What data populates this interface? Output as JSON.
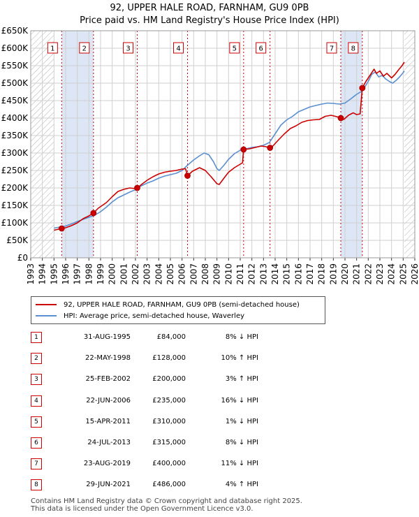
{
  "title": "92, UPPER HALE ROAD, FARNHAM, GU9 0PB",
  "subtitle": "Price paid vs. HM Land Registry's House Price Index (HPI)",
  "colors": {
    "property": "#cc0000",
    "hpi": "#5b8fd0",
    "shade": "#dde6f4",
    "grid": "#cfcfcf",
    "hatch": "#aaaaaa"
  },
  "legend": {
    "property_label": "92, UPPER HALE ROAD, FARNHAM, GU9 0PB (semi-detached house)",
    "hpi_label": "HPI: Average price, semi-detached house, Waverley"
  },
  "transactions": [
    {
      "num": "1",
      "date": "31-AUG-1995",
      "price": "£84,000",
      "hpi": "8% ↓ HPI"
    },
    {
      "num": "2",
      "date": "22-MAY-1998",
      "price": "£128,000",
      "hpi": "10% ↑ HPI"
    },
    {
      "num": "3",
      "date": "25-FEB-2002",
      "price": "£200,000",
      "hpi": "3% ↑ HPI"
    },
    {
      "num": "4",
      "date": "22-JUN-2006",
      "price": "£235,000",
      "hpi": "16% ↓ HPI"
    },
    {
      "num": "5",
      "date": "15-APR-2011",
      "price": "£310,000",
      "hpi": "1% ↓ HPI"
    },
    {
      "num": "6",
      "date": "24-JUL-2013",
      "price": "£315,000",
      "hpi": "8% ↓ HPI"
    },
    {
      "num": "7",
      "date": "23-AUG-2019",
      "price": "£400,000",
      "hpi": "11% ↓ HPI"
    },
    {
      "num": "8",
      "date": "29-JUN-2021",
      "price": "£486,000",
      "hpi": "4% ↑ HPI"
    }
  ],
  "footer": {
    "line1": "Contains HM Land Registry data © Crown copyright and database right 2025.",
    "line2": "This data is licensed under the Open Government Licence v3.0."
  },
  "chart_data": {
    "type": "line",
    "xlim": [
      1993,
      2026
    ],
    "ylim": [
      0,
      650000
    ],
    "grid": true,
    "legend_position": "below",
    "x_ticks": [
      "1993",
      "1994",
      "1995",
      "1996",
      "1997",
      "1998",
      "1999",
      "2000",
      "2001",
      "2002",
      "2003",
      "2004",
      "2005",
      "2006",
      "2007",
      "2008",
      "2009",
      "2010",
      "2011",
      "2012",
      "2013",
      "2014",
      "2015",
      "2016",
      "2017",
      "2018",
      "2019",
      "2020",
      "2021",
      "2022",
      "2023",
      "2024",
      "2025",
      "2026"
    ],
    "y_ticks": [
      {
        "value": 0,
        "label": "£0"
      },
      {
        "value": 50000,
        "label": "£50K"
      },
      {
        "value": 100000,
        "label": "£100K"
      },
      {
        "value": 150000,
        "label": "£150K"
      },
      {
        "value": 200000,
        "label": "£200K"
      },
      {
        "value": 250000,
        "label": "£250K"
      },
      {
        "value": 300000,
        "label": "£300K"
      },
      {
        "value": 350000,
        "label": "£350K"
      },
      {
        "value": 400000,
        "label": "£400K"
      },
      {
        "value": 450000,
        "label": "£450K"
      },
      {
        "value": 500000,
        "label": "£500K"
      },
      {
        "value": 550000,
        "label": "£550K"
      },
      {
        "value": 600000,
        "label": "£600K"
      },
      {
        "value": 650000,
        "label": "£650K"
      }
    ],
    "hatch_ranges": [
      [
        1993,
        1995.0
      ],
      [
        2025.1,
        2026
      ]
    ],
    "shaded_ranges": [
      [
        1995.66,
        1998.39
      ],
      [
        2019.64,
        2021.49
      ]
    ],
    "sales": [
      {
        "label": "1",
        "x": 1995.66,
        "y": 84000
      },
      {
        "label": "2",
        "x": 1998.39,
        "y": 128000
      },
      {
        "label": "3",
        "x": 2002.15,
        "y": 200000
      },
      {
        "label": "4",
        "x": 2006.47,
        "y": 235000
      },
      {
        "label": "5",
        "x": 2011.29,
        "y": 310000
      },
      {
        "label": "6",
        "x": 2013.56,
        "y": 315000
      },
      {
        "label": "7",
        "x": 2019.64,
        "y": 400000
      },
      {
        "label": "8",
        "x": 2021.49,
        "y": 486000
      }
    ],
    "series": [
      {
        "name": "92, UPPER HALE ROAD, FARNHAM, GU9 0PB (semi-detached house)",
        "color": "#cc0000",
        "x": [
          1995.0,
          1995.66,
          1996.0,
          1996.5,
          1997.0,
          1997.5,
          1998.0,
          1998.39,
          1998.8,
          1999.5,
          2000.0,
          2000.5,
          2001.0,
          2001.5,
          2002.0,
          2002.15,
          2002.6,
          2003.0,
          2003.5,
          2004.0,
          2004.5,
          2005.0,
          2005.5,
          2006.0,
          2006.3,
          2006.47,
          2006.9,
          2007.5,
          2008.0,
          2008.5,
          2009.0,
          2009.2,
          2009.6,
          2010.0,
          2010.5,
          2011.0,
          2011.2,
          2011.29,
          2011.8,
          2012.3,
          2012.8,
          2013.2,
          2013.56,
          2013.8,
          2014.3,
          2014.8,
          2015.3,
          2015.8,
          2016.3,
          2016.8,
          2017.3,
          2017.8,
          2018.3,
          2018.8,
          2019.3,
          2019.64,
          2019.9,
          2020.3,
          2020.7,
          2021.0,
          2021.3,
          2021.49,
          2021.8,
          2022.2,
          2022.5,
          2022.7,
          2023.0,
          2023.3,
          2023.6,
          2024.0,
          2024.3,
          2024.6,
          2024.9,
          2025.1
        ],
        "y": [
          79000,
          84000,
          86000,
          92000,
          100000,
          112000,
          120000,
          128000,
          142000,
          158000,
          175000,
          190000,
          196000,
          200000,
          198000,
          200000,
          212000,
          222000,
          232000,
          240000,
          245000,
          248000,
          250000,
          254000,
          255000,
          235000,
          248000,
          258000,
          250000,
          232000,
          212000,
          210000,
          228000,
          245000,
          258000,
          268000,
          272000,
          310000,
          312000,
          316000,
          320000,
          318000,
          315000,
          320000,
          338000,
          355000,
          370000,
          378000,
          388000,
          393000,
          395000,
          396000,
          405000,
          408000,
          404000,
          400000,
          396000,
          408000,
          415000,
          410000,
          412000,
          486000,
          505000,
          525000,
          540000,
          528000,
          535000,
          520000,
          528000,
          515000,
          525000,
          538000,
          550000,
          560000
        ]
      },
      {
        "name": "HPI: Average price, semi-detached house, Waverley",
        "color": "#5b8fd0",
        "x": [
          1995.0,
          1995.5,
          1996.0,
          1996.5,
          1997.0,
          1997.5,
          1998.0,
          1998.5,
          1999.0,
          1999.5,
          2000.0,
          2000.5,
          2001.0,
          2001.5,
          2002.0,
          2002.5,
          2003.0,
          2003.5,
          2004.0,
          2004.5,
          2005.0,
          2005.5,
          2006.0,
          2006.5,
          2007.0,
          2007.5,
          2007.9,
          2008.3,
          2008.7,
          2009.0,
          2009.2,
          2009.6,
          2010.0,
          2010.5,
          2011.0,
          2011.5,
          2012.0,
          2012.5,
          2013.0,
          2013.5,
          2014.0,
          2014.5,
          2015.0,
          2015.5,
          2016.0,
          2016.5,
          2017.0,
          2017.5,
          2018.0,
          2018.5,
          2019.0,
          2019.5,
          2020.0,
          2020.5,
          2021.0,
          2021.5,
          2022.0,
          2022.3,
          2022.6,
          2022.9,
          2023.2,
          2023.5,
          2023.8,
          2024.1,
          2024.4,
          2024.7,
          2025.0,
          2025.1
        ],
        "y": [
          85000,
          88000,
          91000,
          97000,
          104000,
          110000,
          116000,
          122000,
          132000,
          145000,
          160000,
          172000,
          180000,
          188000,
          195000,
          206000,
          214000,
          220000,
          228000,
          234000,
          238000,
          242000,
          250000,
          266000,
          280000,
          292000,
          300000,
          295000,
          275000,
          255000,
          250000,
          265000,
          282000,
          298000,
          308000,
          312000,
          316000,
          318000,
          322000,
          330000,
          355000,
          380000,
          395000,
          405000,
          418000,
          425000,
          432000,
          436000,
          440000,
          443000,
          442000,
          440000,
          443000,
          455000,
          468000,
          478000,
          505000,
          525000,
          532000,
          518000,
          522000,
          512000,
          505000,
          500000,
          508000,
          518000,
          530000,
          535000
        ]
      }
    ]
  }
}
